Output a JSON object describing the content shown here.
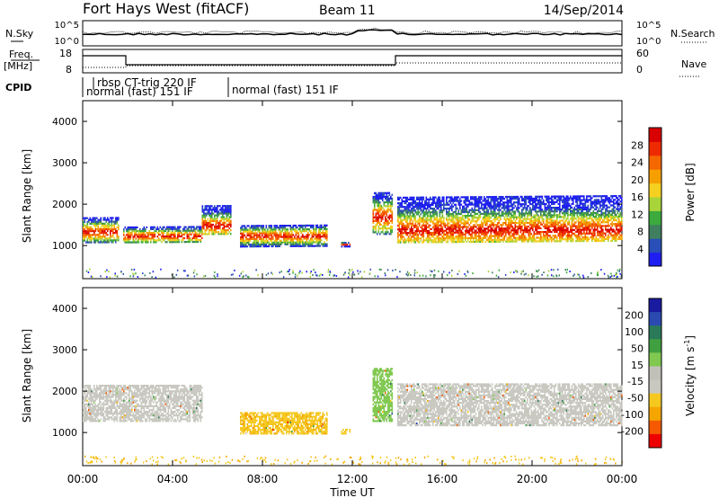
{
  "header": {
    "station": "Fort Hays West (fitACF)",
    "beam": "Beam 11",
    "date": "14/Sep/2014"
  },
  "noise_panel": {
    "left_label": "N.Sky",
    "right_label": "N.Search",
    "left_ticks": [
      "10^5",
      "10^0"
    ],
    "right_ticks": [
      "10^5",
      "10^0"
    ]
  },
  "freq_panel": {
    "left_label_1": "Freq.",
    "left_label_2": "[MHz]",
    "right_label": "Nave",
    "left_ticks": [
      "18",
      "8"
    ],
    "right_ticks": [
      "60",
      "0"
    ]
  },
  "cpid_panel": {
    "label": "CPID",
    "modes": [
      "rbsp CT-trig 220 IF",
      "normal (fast) 151 IF",
      "normal (fast) 151 IF"
    ]
  },
  "colors": {
    "power": [
      "#1e1ef0",
      "#2a4fb8",
      "#3f7f5f",
      "#3caa3c",
      "#a8d43a",
      "#f5d020",
      "#f5a000",
      "#f56800",
      "#ee2a00",
      "#d80000"
    ],
    "velocity": [
      "#ee0000",
      "#f55a00",
      "#f5a500",
      "#f5c820",
      "#c8c8c0",
      "#c0c0b8",
      "#80c850",
      "#40a040",
      "#2a7a5a",
      "#2a4ab0",
      "#1a1aa0"
    ]
  },
  "chart_data": [
    {
      "type": "heatmap",
      "panel": "power",
      "ylabel": "Slant Range [km]",
      "ylim": [
        200,
        4500
      ],
      "yticks": [
        "1000",
        "2000",
        "3000",
        "4000"
      ],
      "xlim": [
        0,
        24
      ],
      "colorbar": {
        "label": "Power [dB]",
        "ticks": [
          "4",
          "8",
          "12",
          "16",
          "20",
          "24",
          "28"
        ]
      },
      "echo_bands": [
        {
          "t": [
            0.0,
            1.6
          ],
          "range": [
            1100,
            1700
          ],
          "peak": 1350
        },
        {
          "t": [
            1.8,
            5.3
          ],
          "range": [
            1100,
            1500
          ],
          "peak": 1250
        },
        {
          "t": [
            5.3,
            6.6
          ],
          "range": [
            1300,
            2000
          ],
          "peak": 1500
        },
        {
          "t": [
            7.0,
            10.9
          ],
          "range": [
            1000,
            1500
          ],
          "peak": 1250
        },
        {
          "t": [
            11.5,
            11.9
          ],
          "range": [
            1000,
            1100
          ],
          "peak": 1050
        },
        {
          "t": [
            12.9,
            13.8
          ],
          "range": [
            1300,
            2300
          ],
          "peak": 1700
        },
        {
          "t": [
            14.0,
            24.0
          ],
          "range": [
            1100,
            2200
          ],
          "peak": 1400
        }
      ]
    },
    {
      "type": "heatmap",
      "panel": "velocity",
      "ylabel": "Slant Range [km]",
      "xlabel": "Time UT",
      "ylim": [
        200,
        4500
      ],
      "yticks": [
        "1000",
        "2000",
        "3000",
        "4000"
      ],
      "xlim": [
        0,
        24
      ],
      "xticks": [
        "00:00",
        "04:00",
        "08:00",
        "12:00",
        "16:00",
        "20:00",
        "00:00"
      ],
      "colorbar": {
        "label": "Velocity [m s",
        "label_sup": "-1",
        "label_end": "]",
        "ticks": [
          "200",
          "100",
          "50",
          "15",
          "-15",
          "-50",
          "-100",
          "-200"
        ]
      },
      "echo_bands": [
        {
          "t": [
            0.0,
            5.3
          ],
          "range": [
            1300,
            2200
          ],
          "vel": 0
        },
        {
          "t": [
            7.0,
            10.9
          ],
          "range": [
            1000,
            1500
          ],
          "vel": -40
        },
        {
          "t": [
            11.5,
            11.9
          ],
          "range": [
            1000,
            1100
          ],
          "vel": -30
        },
        {
          "t": [
            12.9,
            13.8
          ],
          "range": [
            1300,
            2600
          ],
          "vel": 30
        },
        {
          "t": [
            14.0,
            24.0
          ],
          "range": [
            1200,
            2200
          ],
          "vel": 0
        }
      ]
    }
  ]
}
